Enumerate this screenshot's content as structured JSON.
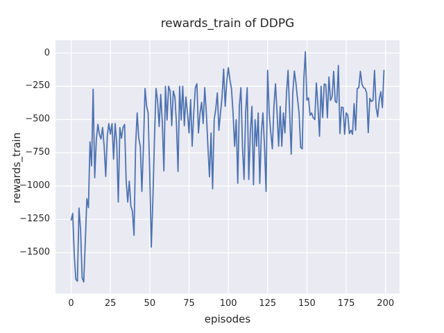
{
  "chart_data": {
    "type": "line",
    "title": "rewards_train of DDPG",
    "xlabel": "episodes",
    "ylabel": "rewards_train",
    "x_ticks": [
      0,
      25,
      50,
      75,
      100,
      125,
      150,
      175,
      200
    ],
    "y_ticks": [
      0,
      -250,
      -500,
      -750,
      -1000,
      -1250,
      -1500
    ],
    "xlim": [
      -9.95,
      208.95
    ],
    "ylim": [
      -1806.5,
      96.5
    ],
    "grid": true,
    "legend_position": "none",
    "plot_bg_color": "#eaeaf2",
    "grid_color": "#ffffff",
    "line_color": "#4c72b0",
    "text_color": "#262626",
    "x_start": 0,
    "x_step": 1,
    "series": [
      {
        "name": "rewards_train",
        "values": [
          -1255,
          -1205,
          -1520,
          -1700,
          -1715,
          -1165,
          -1330,
          -1690,
          -1720,
          -1420,
          -1094,
          -1161,
          -667,
          -848,
          -271,
          -937,
          -656,
          -536,
          -610,
          -646,
          -560,
          -700,
          -927,
          -620,
          -530,
          -610,
          -530,
          -797,
          -530,
          -680,
          -1120,
          -560,
          -640,
          -560,
          -536,
          -962,
          -1120,
          -962,
          -1150,
          -1190,
          -1370,
          -700,
          -450,
          -640,
          -700,
          -1040,
          -700,
          -266,
          -400,
          -450,
          -900,
          -1458,
          -1100,
          -650,
          -266,
          -360,
          -552,
          -311,
          -521,
          -885,
          -250,
          -503,
          -250,
          -285,
          -545,
          -285,
          -330,
          -530,
          -890,
          -250,
          -503,
          -250,
          -545,
          -330,
          -450,
          -600,
          -350,
          -700,
          -450,
          -260,
          -230,
          -600,
          -450,
          -370,
          -530,
          -260,
          -450,
          -700,
          -930,
          -600,
          -1020,
          -500,
          -420,
          -300,
          -580,
          -450,
          -330,
          -120,
          -400,
          -214,
          -110,
          -200,
          -266,
          -450,
          -700,
          -500,
          -979,
          -400,
          -260,
          -700,
          -950,
          -450,
          -260,
          -950,
          -600,
          -400,
          -990,
          -500,
          -700,
          -450,
          -980,
          -600,
          -450,
          -700,
          -1040,
          -130,
          -450,
          -600,
          -719,
          -400,
          -230,
          -450,
          -700,
          -400,
          -700,
          -450,
          -600,
          -300,
          -130,
          -448,
          -760,
          -300,
          -135,
          -224,
          -344,
          -450,
          -708,
          -720,
          -200,
          10,
          -354,
          -337,
          -467,
          -450,
          -486,
          -500,
          -224,
          -397,
          -625,
          -250,
          -486,
          -232,
          -237,
          -486,
          -180,
          -356,
          -330,
          -137,
          -364,
          -372,
          -94,
          -605,
          -406,
          -410,
          -610,
          -450,
          -467,
          -605,
          -580,
          -610,
          -380,
          -580,
          -266,
          -260,
          -137,
          -232,
          -260,
          -266,
          -300,
          -598,
          -340,
          -364,
          -356,
          -130,
          -410,
          -479,
          -350,
          -290,
          -410,
          -130
        ]
      }
    ]
  }
}
